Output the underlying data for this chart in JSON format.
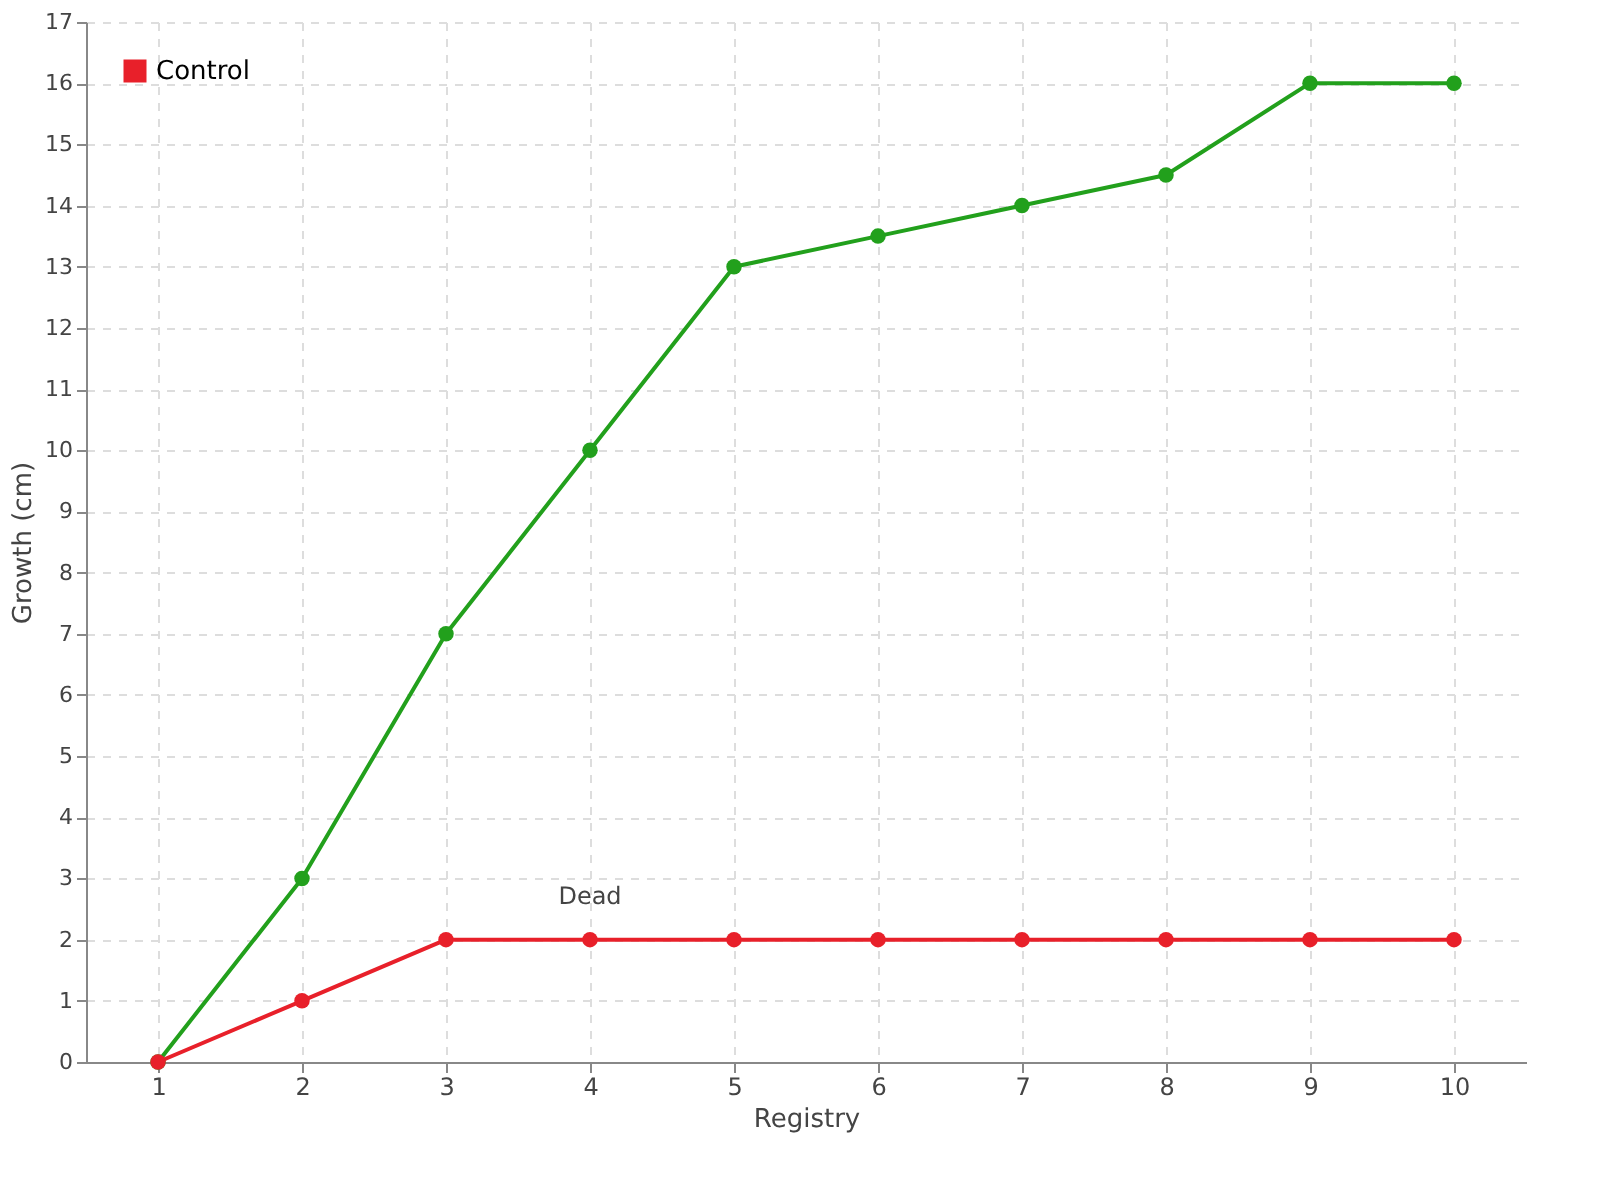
{
  "chart_data": {
    "type": "line",
    "xlabel": "Registry",
    "ylabel": "Growth (cm)",
    "categories": [
      "1",
      "2",
      "3",
      "4",
      "5",
      "6",
      "7",
      "8",
      "9",
      "10"
    ],
    "series": [
      {
        "color": "#22a01c",
        "values": [
          0,
          3,
          7,
          10,
          13,
          13.5,
          14,
          14.5,
          16,
          16
        ]
      },
      {
        "name": "Control",
        "color": "#e8202a",
        "values": [
          0,
          1,
          2,
          2,
          2,
          2,
          2,
          2,
          2,
          2
        ]
      }
    ],
    "ylim": [
      0,
      17
    ],
    "yticks": [
      0,
      1,
      2,
      3,
      4,
      5,
      6,
      7,
      8,
      9,
      10,
      11,
      12,
      13,
      14,
      15,
      16,
      17
    ],
    "grid": true,
    "legend": "top left",
    "marker": "circle",
    "annotations": [
      {
        "text": "Dead",
        "x": "4",
        "y": 2
      }
    ]
  }
}
